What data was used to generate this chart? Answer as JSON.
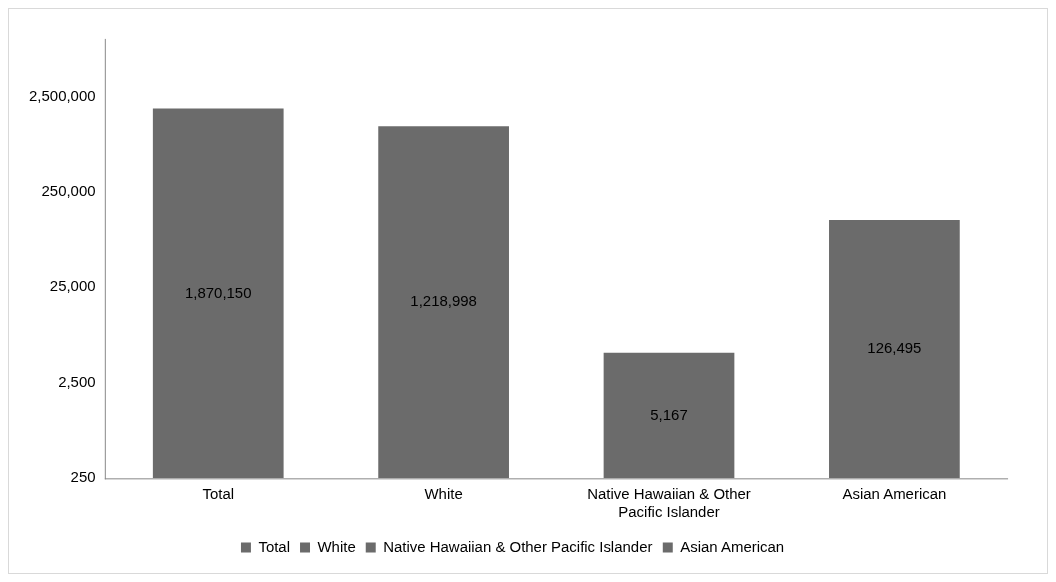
{
  "chart_data": {
    "type": "bar",
    "categories": [
      "Total",
      "White",
      "Native Hawaiian & Other Pacific Islander",
      "Asian American"
    ],
    "series": [
      {
        "name": "Total",
        "color": "#6b6b6b",
        "values": [
          1870150,
          null,
          null,
          null
        ],
        "value_labels": [
          "1,870,150",
          null,
          null,
          null
        ]
      },
      {
        "name": "White",
        "color": "#6b6b6b",
        "values": [
          null,
          1218998,
          null,
          null
        ],
        "value_labels": [
          null,
          "1,218,998",
          null,
          null
        ]
      },
      {
        "name": "Native Hawaiian & Other Pacific Islander",
        "color": "#6b6b6b",
        "values": [
          null,
          null,
          5167,
          null
        ],
        "value_labels": [
          null,
          null,
          "5,167",
          null
        ]
      },
      {
        "name": "Asian American",
        "color": "#6b6b6b",
        "values": [
          null,
          null,
          null,
          126495
        ],
        "value_labels": [
          null,
          null,
          null,
          "126,495"
        ]
      }
    ],
    "log": "y",
    "ylim": [
      250,
      10000000
    ],
    "yticks": [
      {
        "value": 250,
        "label": "250"
      },
      {
        "value": 2500,
        "label": "2,500"
      },
      {
        "value": 25000,
        "label": "25,000"
      },
      {
        "value": 250000,
        "label": "250,000"
      },
      {
        "value": 2500000,
        "label": "2,500,000"
      }
    ],
    "grid": false,
    "legend": "bottom"
  }
}
